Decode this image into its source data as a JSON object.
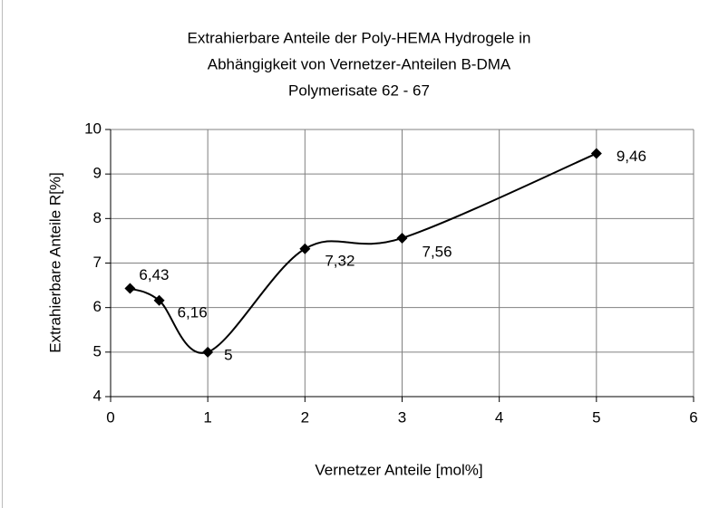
{
  "chart_data": {
    "type": "line",
    "title": [
      "Extrahierbare Anteile der Poly-HEMA Hydrogele in",
      "Abhängigkeit von Vernetzer-Anteilen B-DMA",
      "Polymerisate 62 - 67"
    ],
    "x_label": "Vernetzer Anteile [mol%]",
    "y_label": "Extrahierbare Anteile R[%]",
    "x": [
      0.2,
      0.5,
      1,
      2,
      3,
      5
    ],
    "values": [
      6.43,
      6.16,
      5,
      7.32,
      7.56,
      9.46
    ],
    "value_labels": [
      "6,43",
      "6,16",
      "5",
      "7,32",
      "7,56",
      "9,46"
    ],
    "color": "#000000",
    "xlim": [
      0,
      6
    ],
    "xticks": [
      0,
      1,
      2,
      3,
      4,
      5,
      6
    ],
    "ylim": [
      4,
      10
    ],
    "yticks": [
      4,
      5,
      6,
      7,
      8,
      9,
      10
    ],
    "grid": true,
    "smooth": true
  }
}
